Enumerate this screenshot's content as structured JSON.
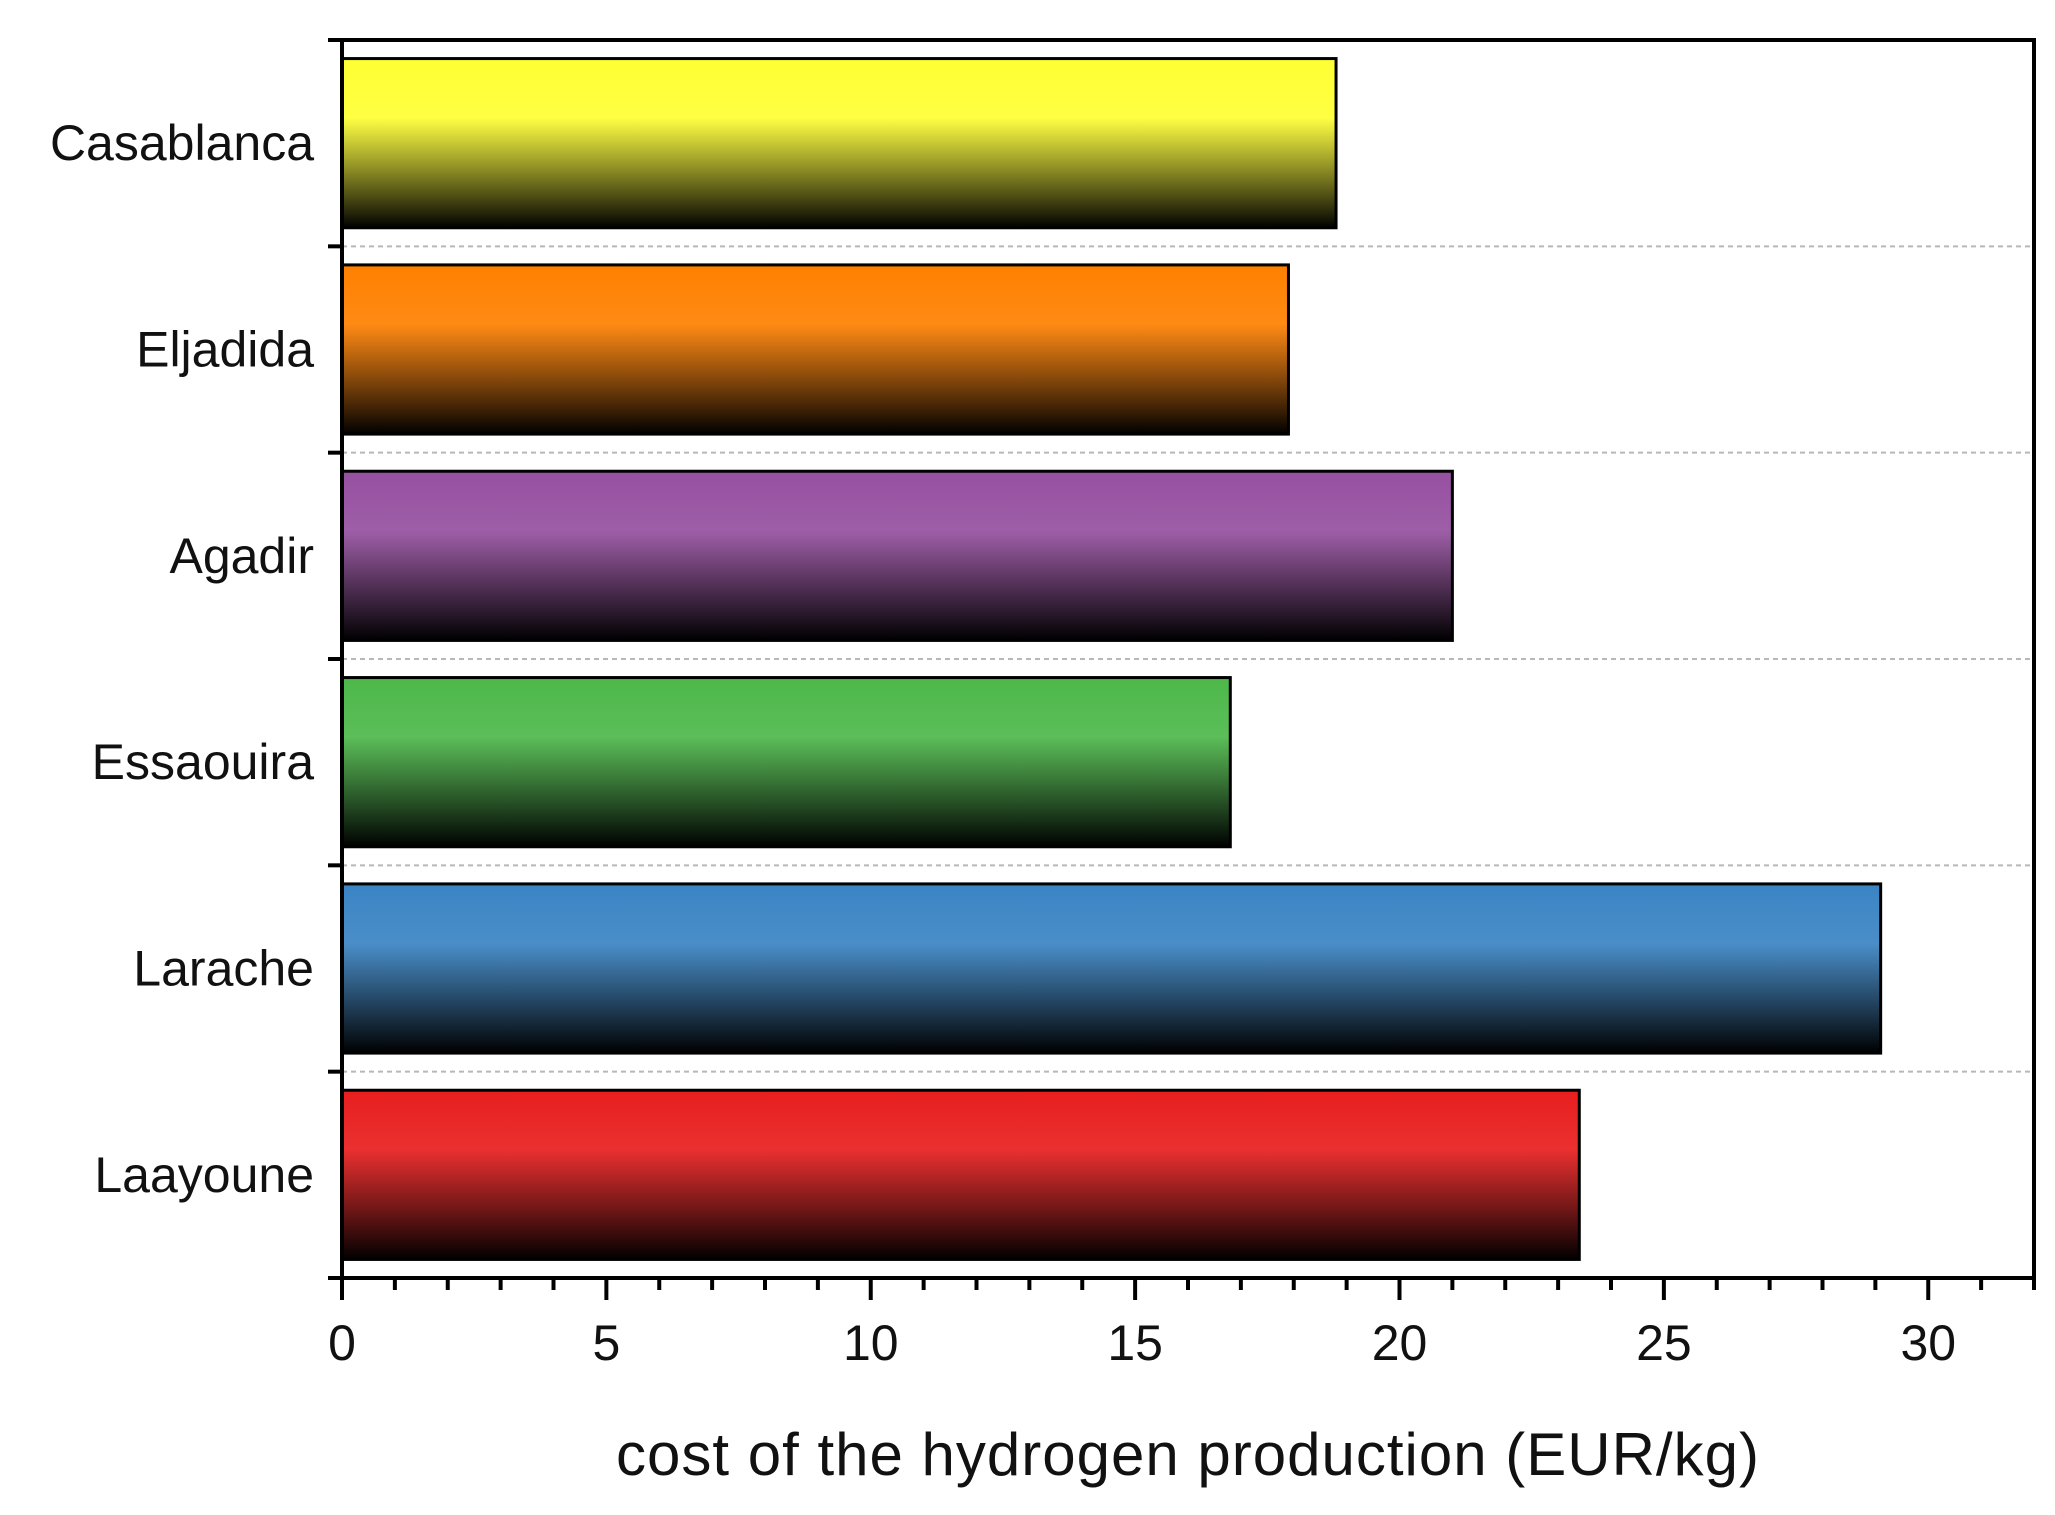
{
  "chart_data": {
    "type": "bar",
    "orientation": "horizontal",
    "categories": [
      "Casablanca",
      "Eljadida",
      "Agadir",
      "Essaouira",
      "Larache",
      "Laayoune"
    ],
    "values": [
      18.8,
      17.9,
      21.0,
      16.8,
      29.1,
      23.4
    ],
    "colors": [
      "#ffff33",
      "#ff8000",
      "#9650a0",
      "#4db84a",
      "#3a84c4",
      "#e81e1e"
    ],
    "title": "",
    "xlabel": "cost of the hydrogen production (EUR/kg)",
    "ylabel": "",
    "xlim": [
      0,
      32
    ],
    "xticks": [
      "0",
      "5",
      "10",
      "15",
      "20",
      "25",
      "30"
    ],
    "grid": "horizontal dashed between categories",
    "legend": "none"
  }
}
